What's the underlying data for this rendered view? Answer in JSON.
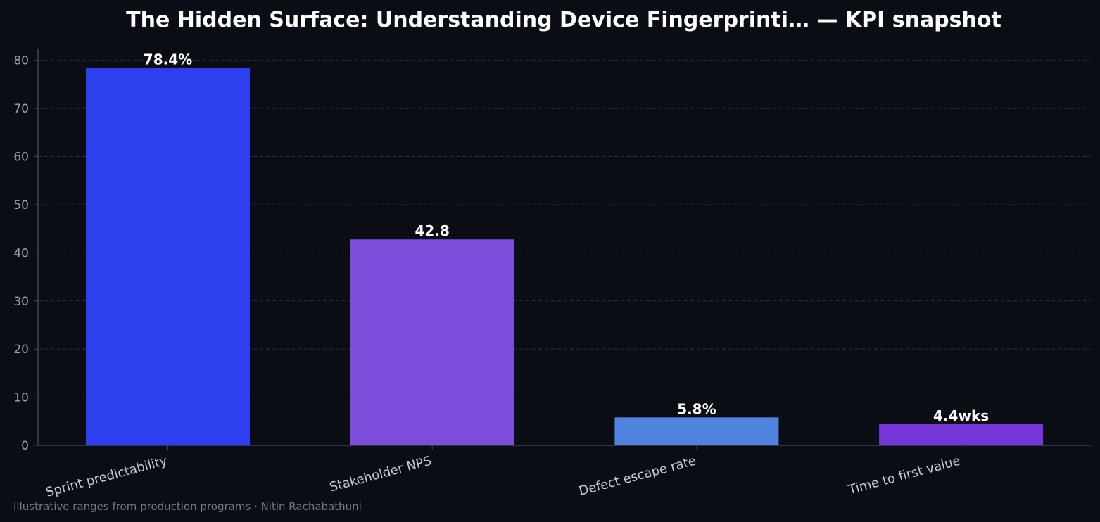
{
  "chart_data": {
    "type": "bar",
    "title": "The Hidden Surface: Understanding Device Fingerprinti… — KPI snapshot",
    "xlabel": "",
    "ylabel": "",
    "categories": [
      "Sprint predictability",
      "Stakeholder NPS",
      "Defect escape rate",
      "Time to first value"
    ],
    "values": [
      78.4,
      42.8,
      5.8,
      4.4
    ],
    "value_labels": [
      "78.4%",
      "42.8",
      "5.8%",
      "4.4wks"
    ],
    "colors": [
      "#2e3ff0",
      "#7d4cdb",
      "#5083e0",
      "#7535d9"
    ],
    "ylim": [
      0,
      82.3
    ],
    "yticks": [
      0,
      10,
      20,
      30,
      40,
      50,
      60,
      70,
      80
    ],
    "grid": true,
    "footer": "Illustrative ranges from production programs · Nitin Rachabathuni"
  }
}
